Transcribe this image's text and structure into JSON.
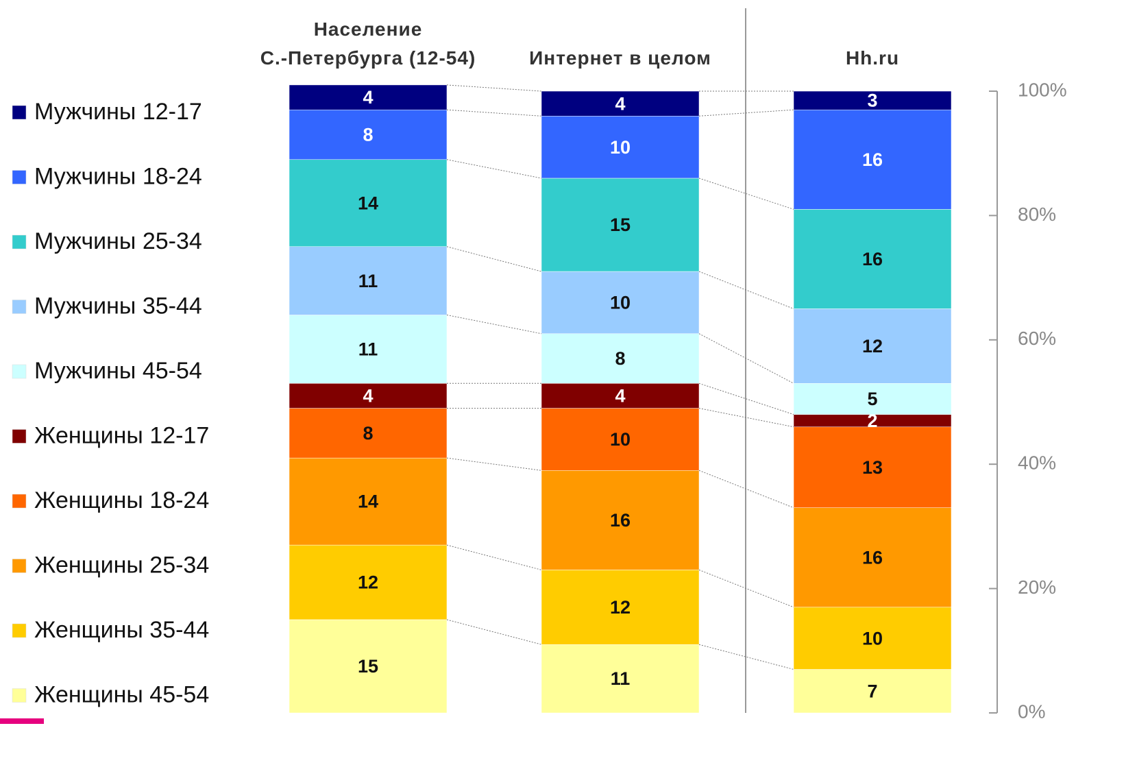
{
  "chart_data": {
    "type": "stacked_bar",
    "categories": [
      "Население\nС.-Петербурга (12-54)",
      "Интернет в целом",
      "Hh.ru"
    ],
    "series": [
      {
        "name": "Мужчины 12-17",
        "color": "#000080",
        "values": [
          4,
          4,
          3
        ]
      },
      {
        "name": "Мужчины 18-24",
        "color": "#3366ff",
        "values": [
          8,
          10,
          16
        ]
      },
      {
        "name": "Мужчины 25-34",
        "color": "#33cccc",
        "values": [
          14,
          15,
          16
        ]
      },
      {
        "name": "Мужчины 35-44",
        "color": "#99ccff",
        "values": [
          11,
          10,
          12
        ]
      },
      {
        "name": "Мужчины 45-54",
        "color": "#ccffff",
        "values": [
          11,
          8,
          5
        ]
      },
      {
        "name": "Женщины 12-17",
        "color": "#800000",
        "values": [
          4,
          4,
          2
        ]
      },
      {
        "name": "Женщины 18-24",
        "color": "#ff6600",
        "values": [
          8,
          10,
          13
        ]
      },
      {
        "name": "Женщины 25-34",
        "color": "#ff9900",
        "values": [
          14,
          16,
          16
        ]
      },
      {
        "name": "Женщины 35-44",
        "color": "#ffcc00",
        "values": [
          12,
          12,
          10
        ]
      },
      {
        "name": "Женщины 45-54",
        "color": "#ffff99",
        "values": [
          15,
          11,
          7
        ]
      }
    ],
    "ylim": [
      0,
      100
    ],
    "yticks": [
      {
        "value": 0,
        "label": "0%"
      },
      {
        "value": 20,
        "label": "20%"
      },
      {
        "value": 40,
        "label": "40%"
      },
      {
        "value": 60,
        "label": "60%"
      },
      {
        "value": 80,
        "label": "80%"
      },
      {
        "value": 100,
        "label": "100%"
      }
    ]
  }
}
